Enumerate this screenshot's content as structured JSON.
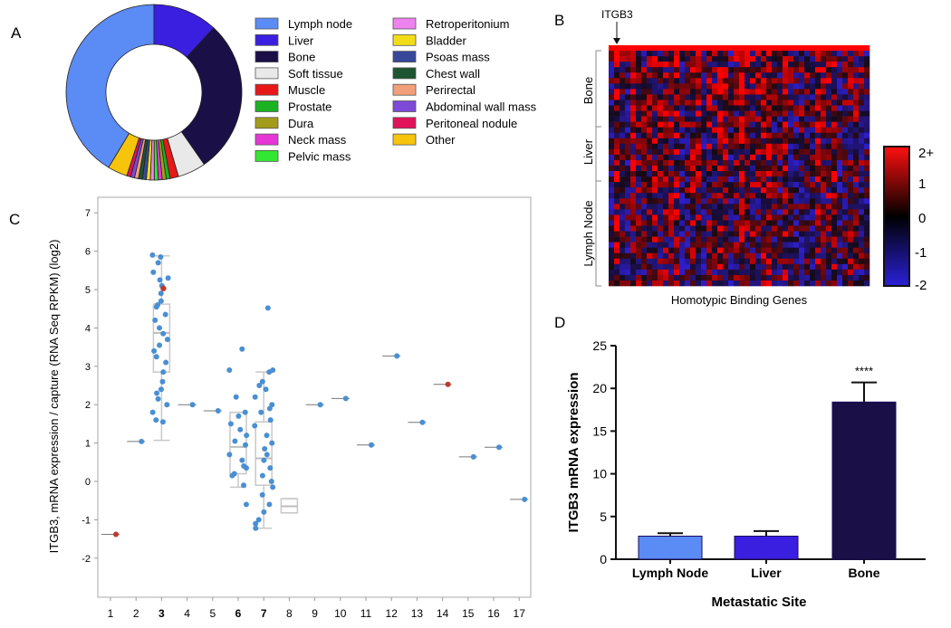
{
  "panels": {
    "a": "A",
    "b": "B",
    "c": "C",
    "d": "D"
  },
  "colors": {
    "point": "#4a8fd2",
    "point_red": "#c0392b",
    "box": "#cccccc",
    "bar_edge": "#1a0a5c",
    "error": "#111111"
  },
  "chart_data": [
    {
      "id": "A",
      "type": "pie",
      "donut": true,
      "title": "",
      "slices": [
        {
          "label": "Lymph node",
          "value": 40.0,
          "color": "#5b8bf5"
        },
        {
          "label": "Liver",
          "value": 11.5,
          "color": "#3a1fe0"
        },
        {
          "label": "Bone",
          "value": 27.5,
          "color": "#1a0f46"
        },
        {
          "label": "Soft tissue",
          "value": 5.0,
          "color": "#e9e9e9"
        },
        {
          "label": "Muscle",
          "value": 1.5,
          "color": "#e81818"
        },
        {
          "label": "Prostate",
          "value": 0.7,
          "color": "#1bb323"
        },
        {
          "label": "Dura",
          "value": 0.7,
          "color": "#a39c1b"
        },
        {
          "label": "Neck mass",
          "value": 0.7,
          "color": "#e637d6"
        },
        {
          "label": "Pelvic mass",
          "value": 0.7,
          "color": "#33e633"
        },
        {
          "label": "Retroperitonium",
          "value": 0.7,
          "color": "#ee82ee"
        },
        {
          "label": "Bladder",
          "value": 0.7,
          "color": "#f2dc18"
        },
        {
          "label": "Psoas mass",
          "value": 0.7,
          "color": "#37489b"
        },
        {
          "label": "Chest wall",
          "value": 0.7,
          "color": "#1c5530"
        },
        {
          "label": "Perirectal",
          "value": 0.7,
          "color": "#f2a07a"
        },
        {
          "label": "Abdominal wall mass",
          "value": 0.7,
          "color": "#7d4ad8"
        },
        {
          "label": "Peritoneal nodule",
          "value": 0.7,
          "color": "#e0125a"
        },
        {
          "label": "Other",
          "value": 3.5,
          "color": "#f5c40b"
        }
      ]
    },
    {
      "id": "B",
      "type": "heatmap",
      "annotation": "ITGB3",
      "row_groups": [
        "Bone",
        "Liver",
        "Lymph Node"
      ],
      "xlabel": "Homotypic Binding Genes",
      "colorbar_ticks": [
        "2+",
        "1",
        "0",
        "-1",
        "-2"
      ],
      "colorbar_range": [
        -2,
        2
      ]
    },
    {
      "id": "C",
      "type": "scatter",
      "ylabel": "ITGB3, mRNA expression / capture (RNA Seq RPKM) (log2)",
      "x_ticks": [
        "1",
        "2",
        "3",
        "4",
        "5",
        "6",
        "7",
        "8",
        "9",
        "10",
        "11",
        "12",
        "13",
        "14",
        "15",
        "16",
        "17"
      ],
      "bold_ticks": [
        "3",
        "6",
        "7"
      ],
      "y_ticks": [
        "-2",
        "-1",
        "0",
        "1",
        "2",
        "3",
        "4",
        "5",
        "6",
        "7"
      ],
      "ylim": [
        -2.8,
        7.3
      ],
      "xlim": [
        0.5,
        17.5
      ],
      "boxes": [
        {
          "x": 3,
          "q1": 2.85,
          "median": 3.87,
          "q3": 4.62,
          "lo": 1.07,
          "hi": 5.88
        },
        {
          "x": 6,
          "q1": 0.2,
          "median": 0.9,
          "q3": 1.8,
          "lo": -0.15,
          "hi": 1.8
        },
        {
          "x": 7,
          "q1": -0.1,
          "median": 0.6,
          "q3": 1.55,
          "lo": -1.22,
          "hi": 2.85
        },
        {
          "x": 8,
          "q1": -0.82,
          "median": -0.65,
          "q3": -0.45,
          "lo": -0.82,
          "hi": -0.45
        }
      ],
      "singles": [
        {
          "x": 1,
          "y": -1.38,
          "red": true
        },
        {
          "x": 2,
          "y": 1.04,
          "red": false
        },
        {
          "x": 4,
          "y": 2.0,
          "red": false
        },
        {
          "x": 5,
          "y": 1.84,
          "red": false
        },
        {
          "x": 9,
          "y": 2.0,
          "red": false
        },
        {
          "x": 10,
          "y": 2.16,
          "red": false
        },
        {
          "x": 11,
          "y": 0.95,
          "red": false
        },
        {
          "x": 12,
          "y": 3.27,
          "red": false
        },
        {
          "x": 13,
          "y": 1.54,
          "red": false
        },
        {
          "x": 14,
          "y": 2.53,
          "red": true
        },
        {
          "x": 15,
          "y": 0.64,
          "red": false
        },
        {
          "x": 16,
          "y": 0.89,
          "red": false
        },
        {
          "x": 17,
          "y": -0.47,
          "red": false
        }
      ],
      "clusters": [
        {
          "x": 3,
          "y": [
            5.9,
            5.85,
            5.7,
            5.45,
            5.3,
            5.25,
            5.1,
            4.9,
            4.7,
            4.6,
            4.55,
            4.35,
            4.2,
            4.0,
            3.85,
            3.7,
            3.55,
            3.4,
            3.25,
            3.1,
            2.85,
            2.6,
            2.4,
            2.3,
            2.15,
            2.0,
            1.8,
            1.6,
            1.55
          ],
          "red": [
            5.03
          ]
        },
        {
          "x": 6,
          "y": [
            3.45,
            2.9,
            2.2,
            1.8,
            1.7,
            1.5,
            1.35,
            1.2,
            1.05,
            0.95,
            0.7,
            0.55,
            0.4,
            0.35,
            0.2,
            0.15,
            -0.1,
            -0.6
          ],
          "red": []
        },
        {
          "x": 7,
          "y": [
            4.52,
            2.9,
            2.85,
            2.6,
            2.5,
            2.4,
            2.2,
            2.0,
            1.9,
            1.8,
            1.6,
            1.45,
            1.2,
            1.0,
            0.85,
            0.7,
            0.55,
            0.35,
            0.15,
            0.0,
            -0.15,
            -0.35,
            -0.6,
            -0.8,
            -1.0,
            -1.1,
            -1.22
          ],
          "red": []
        }
      ]
    },
    {
      "id": "D",
      "type": "bar",
      "categories": [
        "Lymph Node",
        "Liver",
        "Bone"
      ],
      "values": [
        2.7,
        2.7,
        18.4
      ],
      "errors": [
        0.35,
        0.6,
        2.3
      ],
      "colors": [
        "#5b8bf5",
        "#3a1fe0",
        "#1a0f46"
      ],
      "ylabel": "ITGB3 mRNA expression",
      "xlabel": "Metastatic Site",
      "ylim": [
        0,
        25
      ],
      "y_ticks": [
        "0",
        "5",
        "10",
        "15",
        "20",
        "25"
      ],
      "significance": "****"
    }
  ]
}
